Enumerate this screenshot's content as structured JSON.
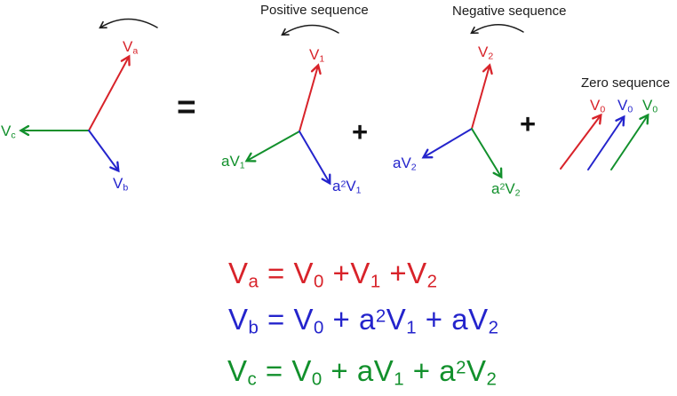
{
  "colors": {
    "red": "#d8232a",
    "blue": "#2424cc",
    "green": "#12902c",
    "black": "#1c1c1c"
  },
  "operators": {
    "equals": "=",
    "plus": "+"
  },
  "unbalanced_diagram": {
    "labels": {
      "va": [
        {
          "t": "V"
        },
        {
          "t": "a",
          "s": "sub"
        }
      ],
      "vb": [
        {
          "t": "V"
        },
        {
          "t": "b",
          "s": "sub"
        }
      ],
      "vc": [
        {
          "t": "V"
        },
        {
          "t": "c",
          "s": "sub"
        }
      ]
    },
    "phasor_colors": {
      "va": "red",
      "vb": "blue",
      "vc": "green"
    },
    "rotation_direction": "counterclockwise"
  },
  "positive_sequence": {
    "title": "Positive sequence",
    "labels": {
      "v1": [
        {
          "t": "V"
        },
        {
          "t": "1",
          "s": "sub"
        }
      ],
      "av1": [
        {
          "t": "aV"
        },
        {
          "t": "1",
          "s": "sub"
        }
      ],
      "a2v1": [
        {
          "t": "a"
        },
        {
          "t": "2",
          "s": "sup"
        },
        {
          "t": "V"
        },
        {
          "t": "1",
          "s": "sub"
        }
      ]
    },
    "phasor_colors": {
      "v1": "red",
      "av1": "green",
      "a2v1": "blue"
    },
    "rotation_direction": "counterclockwise"
  },
  "negative_sequence": {
    "title": "Negative sequence",
    "labels": {
      "v2": [
        {
          "t": "V"
        },
        {
          "t": "2",
          "s": "sub"
        }
      ],
      "av2": [
        {
          "t": "aV"
        },
        {
          "t": "2",
          "s": "sub"
        }
      ],
      "a2v2": [
        {
          "t": "a"
        },
        {
          "t": "2",
          "s": "sup"
        },
        {
          "t": "V"
        },
        {
          "t": "2",
          "s": "sub"
        }
      ]
    },
    "phasor_colors": {
      "v2": "red",
      "av2": "blue",
      "a2v2": "green"
    },
    "rotation_direction": "counterclockwise"
  },
  "zero_sequence": {
    "title": "Zero sequence",
    "labels": {
      "v0": [
        {
          "t": "V"
        },
        {
          "t": "0",
          "s": "sub"
        }
      ]
    },
    "arrow_colors": [
      "red",
      "blue",
      "green"
    ]
  },
  "equations": [
    {
      "color": "red",
      "segments": [
        {
          "t": "V"
        },
        {
          "t": "a",
          "s": "sub"
        },
        {
          "t": " = V"
        },
        {
          "t": "0",
          "s": "sub"
        },
        {
          "t": " +V"
        },
        {
          "t": "1",
          "s": "sub"
        },
        {
          "t": " +V"
        },
        {
          "t": "2",
          "s": "sub"
        }
      ]
    },
    {
      "color": "blue",
      "segments": [
        {
          "t": "V"
        },
        {
          "t": "b",
          "s": "sub"
        },
        {
          "t": " = V"
        },
        {
          "t": "0",
          "s": "sub"
        },
        {
          "t": " + a"
        },
        {
          "t": "2",
          "s": "sup"
        },
        {
          "t": "V"
        },
        {
          "t": "1",
          "s": "sub"
        },
        {
          "t": " + aV"
        },
        {
          "t": "2",
          "s": "sub"
        }
      ]
    },
    {
      "color": "green",
      "segments": [
        {
          "t": "V"
        },
        {
          "t": "c",
          "s": "sub"
        },
        {
          "t": " = V"
        },
        {
          "t": "0",
          "s": "sub"
        },
        {
          "t": " + aV"
        },
        {
          "t": "1",
          "s": "sub"
        },
        {
          "t": " + a"
        },
        {
          "t": "2",
          "s": "sup"
        },
        {
          "t": "V"
        },
        {
          "t": "2",
          "s": "sub"
        }
      ]
    }
  ]
}
